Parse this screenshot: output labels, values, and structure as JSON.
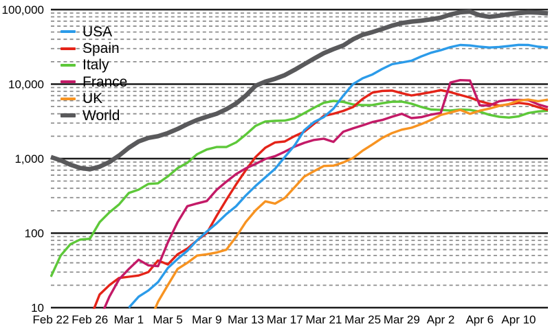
{
  "chart_data": {
    "type": "line",
    "title": "",
    "x_label": "",
    "y_label": "",
    "x": [
      "Feb 22",
      "Feb 23",
      "Feb 24",
      "Feb 25",
      "Feb 26",
      "Feb 27",
      "Feb 28",
      "Feb 29",
      "Mar 1",
      "Mar 2",
      "Mar 3",
      "Mar 4",
      "Mar 5",
      "Mar 6",
      "Mar 7",
      "Mar 8",
      "Mar 9",
      "Mar 10",
      "Mar 11",
      "Mar 12",
      "Mar 13",
      "Mar 14",
      "Mar 15",
      "Mar 16",
      "Mar 17",
      "Mar 18",
      "Mar 19",
      "Mar 20",
      "Mar 21",
      "Mar 22",
      "Mar 23",
      "Mar 24",
      "Mar 25",
      "Mar 26",
      "Mar 27",
      "Mar 28",
      "Mar 29",
      "Mar 30",
      "Mar 31",
      "Apr 1",
      "Apr 2",
      "Apr 3",
      "Apr 4",
      "Apr 5",
      "Apr 6",
      "Apr 7",
      "Apr 8",
      "Apr 9",
      "Apr 10",
      "Apr 11",
      "Apr 12",
      "Apr 13"
    ],
    "x_ticks": [
      {
        "label": "Feb 22",
        "index": 0
      },
      {
        "label": "Feb 26",
        "index": 4
      },
      {
        "label": "Mar 1",
        "index": 8
      },
      {
        "label": "Mar 5",
        "index": 12
      },
      {
        "label": "Mar 9",
        "index": 16
      },
      {
        "label": "Mar 13",
        "index": 20
      },
      {
        "label": "Mar 17",
        "index": 24
      },
      {
        "label": "Mar 21",
        "index": 28
      },
      {
        "label": "Mar 25",
        "index": 32
      },
      {
        "label": "Mar 29",
        "index": 36
      },
      {
        "label": "Apr 2",
        "index": 40
      },
      {
        "label": "Apr 6",
        "index": 44
      },
      {
        "label": "Apr 10",
        "index": 48
      }
    ],
    "y_axis": {
      "scale": "log",
      "range": [
        10,
        100000
      ],
      "ticks": [
        {
          "label": "100,000",
          "value": 100000
        },
        {
          "label": "10,000",
          "value": 10000
        },
        {
          "label": "1,000",
          "value": 1000
        },
        {
          "label": "100",
          "value": 100
        },
        {
          "label": "10",
          "value": 10
        }
      ]
    },
    "grid": {
      "major_color": "#1b1b1b",
      "minor_color": "#8e8e8e",
      "minor_style": "dashed",
      "vertical": false
    },
    "background": "#ffffff",
    "legend": {
      "position": "top-left"
    },
    "series": [
      {
        "name": "USA",
        "color": "#2B9BE9",
        "width": 3.4,
        "values": [
          null,
          null,
          null,
          null,
          null,
          null,
          null,
          null,
          10,
          14,
          17,
          22,
          34,
          45,
          58,
          80,
          105,
          135,
          180,
          230,
          320,
          430,
          560,
          730,
          1050,
          1500,
          2400,
          3100,
          3600,
          4700,
          7000,
          10000,
          12000,
          13500,
          16000,
          18500,
          19500,
          20600,
          23500,
          26400,
          28500,
          31400,
          33500,
          33000,
          31800,
          31000,
          31500,
          32500,
          33700,
          33500,
          31800,
          31000
        ]
      },
      {
        "name": "Spain",
        "color": "#E42318",
        "width": 3.4,
        "values": [
          null,
          null,
          null,
          null,
          7,
          15,
          20,
          25,
          26,
          27,
          30,
          43,
          38,
          52,
          62,
          80,
          100,
          170,
          280,
          450,
          700,
          1050,
          1400,
          1650,
          1700,
          2000,
          2300,
          2930,
          3740,
          4010,
          4370,
          4920,
          6350,
          7700,
          8100,
          8200,
          7550,
          7050,
          7400,
          7800,
          8300,
          7800,
          7150,
          6600,
          5900,
          5450,
          5150,
          5350,
          5600,
          5400,
          4900,
          4500
        ]
      },
      {
        "name": "Italy",
        "color": "#5DC839",
        "width": 3.4,
        "values": [
          26,
          50,
          71,
          82,
          84,
          140,
          190,
          243,
          346,
          383,
          458,
          467,
          577,
          744,
          880,
          1145,
          1325,
          1430,
          1430,
          1650,
          2100,
          2750,
          3150,
          3210,
          3240,
          3470,
          4080,
          4820,
          5620,
          5955,
          5770,
          5340,
          5220,
          5250,
          5540,
          5790,
          5820,
          5460,
          4940,
          4560,
          4510,
          4430,
          4570,
          4500,
          4270,
          3870,
          3640,
          3560,
          3700,
          4100,
          4300,
          4400
        ]
      },
      {
        "name": "France",
        "color": "#C31A67",
        "width": 3.4,
        "values": [
          null,
          null,
          null,
          null,
          null,
          7,
          14,
          24,
          33,
          44,
          37,
          36,
          75,
          140,
          230,
          250,
          270,
          380,
          490,
          620,
          740,
          850,
          990,
          1080,
          1240,
          1450,
          1630,
          1780,
          1850,
          1680,
          2300,
          2550,
          2800,
          3100,
          3300,
          3650,
          4000,
          3500,
          3600,
          3900,
          4100,
          10500,
          11300,
          11200,
          5200,
          5150,
          5900,
          6150,
          6150,
          6100,
          5350,
          4900
        ]
      },
      {
        "name": "UK",
        "color": "#F79321",
        "width": 3.4,
        "values": [
          null,
          null,
          null,
          null,
          null,
          null,
          null,
          null,
          null,
          null,
          6,
          12,
          20,
          33,
          40,
          50,
          52,
          55,
          60,
          89,
          141,
          202,
          267,
          249,
          296,
          412,
          575,
          678,
          797,
          805,
          889,
          1020,
          1282,
          1550,
          1900,
          2200,
          2450,
          2600,
          2900,
          3300,
          3859,
          4150,
          4500,
          4000,
          4400,
          4700,
          5100,
          5400,
          6000,
          6200,
          5900,
          6200
        ]
      },
      {
        "name": "World",
        "color": "#59595B",
        "width": 6.5,
        "values": [
          1050,
          950,
          830,
          750,
          720,
          780,
          900,
          1100,
          1400,
          1700,
          1900,
          2000,
          2200,
          2500,
          2900,
          3300,
          3650,
          4000,
          4600,
          5500,
          7000,
          9500,
          10800,
          11800,
          13200,
          15500,
          18500,
          22000,
          26000,
          29500,
          33000,
          40000,
          46000,
          50000,
          55000,
          61000,
          66000,
          69000,
          71000,
          74000,
          78000,
          86000,
          92000,
          94000,
          84000,
          80000,
          83000,
          87000,
          90000,
          92000,
          91000,
          89000
        ]
      }
    ]
  }
}
